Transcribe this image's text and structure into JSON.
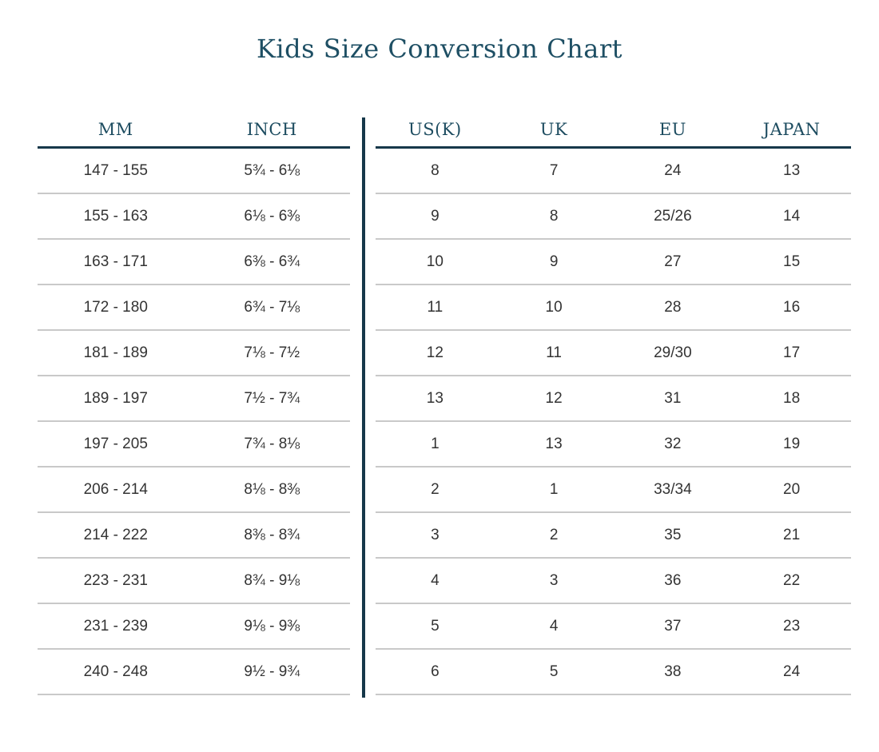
{
  "colors": {
    "background": "#ffffff",
    "accent_text": "#1e4f64",
    "header_text": "#1d4c60",
    "rule_heavy": "#16384a",
    "rule_light": "#c9c9c9",
    "cell_text": "#333333"
  },
  "chart_data": {
    "type": "table",
    "title": "Kids Size Conversion Chart",
    "columns": [
      "MM",
      "INCH",
      "US(K)",
      "UK",
      "EU",
      "JAPAN"
    ],
    "groups": [
      {
        "name": "measurements",
        "col_indices": [
          0,
          1
        ]
      },
      {
        "name": "sizes",
        "col_indices": [
          2,
          3,
          4,
          5
        ]
      }
    ],
    "rows": [
      [
        "147 - 155",
        "5¾ - 6⅛",
        "8",
        "7",
        "24",
        "13"
      ],
      [
        "155 - 163",
        "6⅛ - 6⅜",
        "9",
        "8",
        "25/26",
        "14"
      ],
      [
        "163 - 171",
        "6⅜ - 6¾",
        "10",
        "9",
        "27",
        "15"
      ],
      [
        "172 - 180",
        "6¾ - 7⅛",
        "11",
        "10",
        "28",
        "16"
      ],
      [
        "181 - 189",
        "7⅛ - 7½",
        "12",
        "11",
        "29/30",
        "17"
      ],
      [
        "189 - 197",
        "7½ - 7¾",
        "13",
        "12",
        "31",
        "18"
      ],
      [
        "197 - 205",
        "7¾ - 8⅛",
        "1",
        "13",
        "32",
        "19"
      ],
      [
        "206 - 214",
        "8⅛ - 8⅜",
        "2",
        "1",
        "33/34",
        "20"
      ],
      [
        "214 - 222",
        "8⅜ - 8¾",
        "3",
        "2",
        "35",
        "21"
      ],
      [
        "223 - 231",
        "8¾ - 9⅛",
        "4",
        "3",
        "36",
        "22"
      ],
      [
        "231 - 239",
        "9⅛ - 9⅜",
        "5",
        "4",
        "37",
        "23"
      ],
      [
        "240 - 248",
        "9½ - 9¾",
        "6",
        "5",
        "38",
        "24"
      ]
    ],
    "layout": {
      "two_panel": true,
      "divider_between_groups": true,
      "row_separators": true
    }
  }
}
